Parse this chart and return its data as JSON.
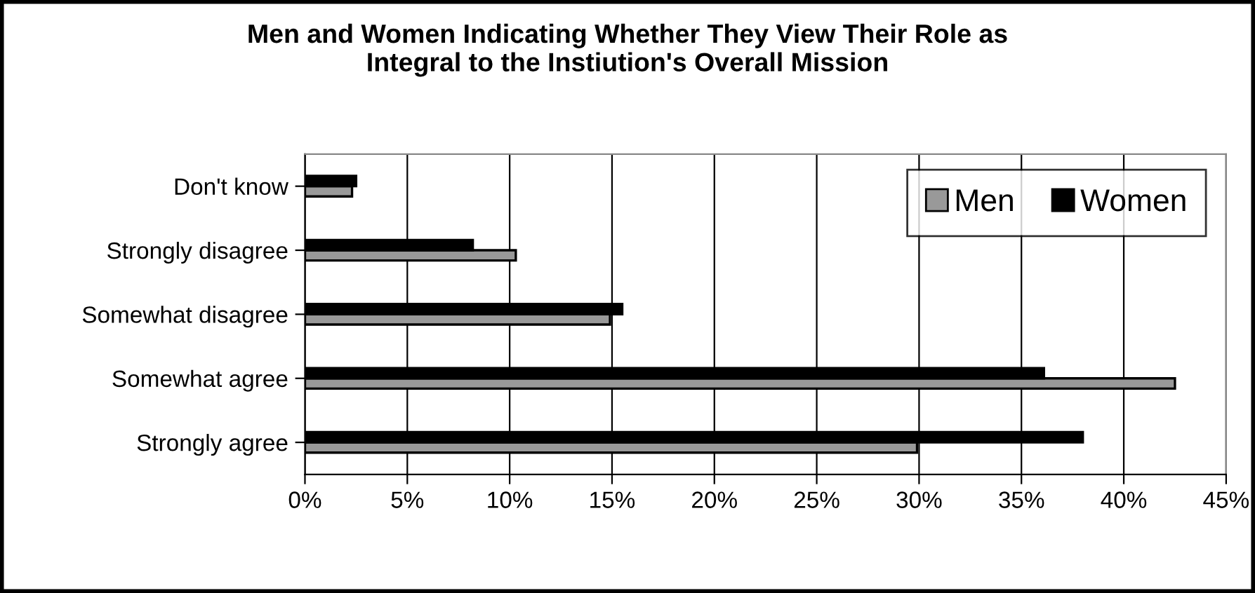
{
  "chart_data": {
    "type": "bar",
    "orientation": "horizontal",
    "title": "Men and Women Indicating Whether They View Their Role as\nIntegral to the Instiution's Overall Mission",
    "categories": [
      "Don't know",
      "Strongly disagree",
      "Somewhat disagree",
      "Somewhat agree",
      "Strongly agree"
    ],
    "series": [
      {
        "name": "Men",
        "color": "#999999",
        "values": [
          2.3,
          10.3,
          14.9,
          42.5,
          29.9
        ]
      },
      {
        "name": "Women",
        "color": "#000000",
        "values": [
          2.5,
          8.2,
          15.5,
          36.1,
          38.0
        ]
      }
    ],
    "xlim": [
      0,
      45
    ],
    "xticks": [
      {
        "value": 0,
        "label": "0%"
      },
      {
        "value": 5,
        "label": "5%"
      },
      {
        "value": 10,
        "label": "10%"
      },
      {
        "value": 15,
        "label": "15%"
      },
      {
        "value": 20,
        "label": "20%"
      },
      {
        "value": 25,
        "label": "25%"
      },
      {
        "value": 30,
        "label": "30%"
      },
      {
        "value": 35,
        "label": "35%"
      },
      {
        "value": 40,
        "label": "40%"
      },
      {
        "value": 45,
        "label": "45%"
      }
    ],
    "grid": "x",
    "legend": "top right"
  }
}
